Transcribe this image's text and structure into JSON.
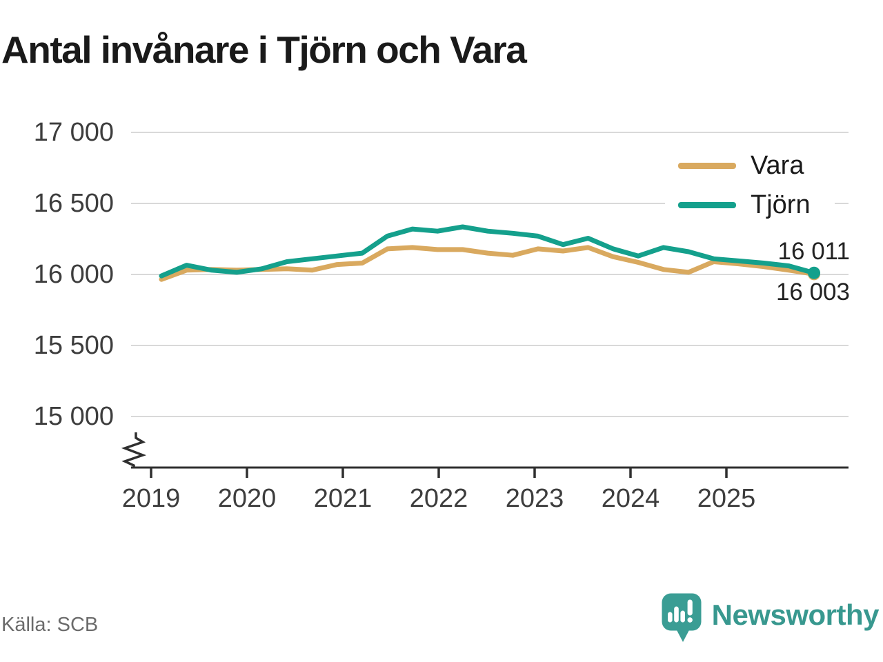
{
  "header": {
    "title": "Antal invånare i Tjörn och Vara"
  },
  "chart_data": {
    "type": "line",
    "title": "Antal invånare i Tjörn och Vara",
    "xlabel": "",
    "ylabel": "",
    "grid": "horizontal",
    "legend_position": "top-right",
    "axis_break_bottom_left": true,
    "ylim": [
      14800,
      17100
    ],
    "y_ticks": [
      {
        "value": 17000,
        "label": "17 000"
      },
      {
        "value": 16500,
        "label": "16 500"
      },
      {
        "value": 16000,
        "label": "16 000"
      },
      {
        "value": 15500,
        "label": "15 500"
      },
      {
        "value": 15000,
        "label": "15 000"
      }
    ],
    "x_tick_labels": [
      "2019",
      "2020",
      "2021",
      "2022",
      "2023",
      "2024",
      "2025"
    ],
    "x": [
      "2019-K1",
      "2019-K2",
      "2019-K3",
      "2019-K4",
      "2020-K1",
      "2020-K2",
      "2020-K3",
      "2020-K4",
      "2021-K1",
      "2021-K2",
      "2021-K3",
      "2021-K4",
      "2022-K1",
      "2022-K2",
      "2022-K3",
      "2022-K4",
      "2023-K1",
      "2023-K2",
      "2023-K3",
      "2023-K4",
      "2024-K1",
      "2024-K2",
      "2024-K3",
      "2024-K4",
      "2025-K1",
      "2025-K2",
      "2025-K3"
    ],
    "series": [
      {
        "name": "Vara",
        "color": "#D9A95F",
        "values": [
          15965,
          16030,
          16035,
          16030,
          16035,
          16040,
          16030,
          16070,
          16080,
          16180,
          16190,
          16175,
          16175,
          16150,
          16135,
          16180,
          16165,
          16190,
          16125,
          16085,
          16035,
          16015,
          16090,
          16075,
          16055,
          16030,
          16003
        ]
      },
      {
        "name": "Tjörn",
        "color": "#14A08C",
        "values": [
          15990,
          16065,
          16030,
          16015,
          16040,
          16090,
          16110,
          16130,
          16150,
          16270,
          16320,
          16305,
          16335,
          16305,
          16290,
          16270,
          16210,
          16255,
          16180,
          16130,
          16190,
          16160,
          16110,
          16095,
          16080,
          16060,
          16011
        ]
      }
    ],
    "end_labels": [
      {
        "series": "Tjörn",
        "text": "16 011"
      },
      {
        "series": "Vara",
        "text": "16 003"
      }
    ]
  },
  "footer": {
    "source": "Källa: SCB",
    "brand": "Newsworthy"
  }
}
